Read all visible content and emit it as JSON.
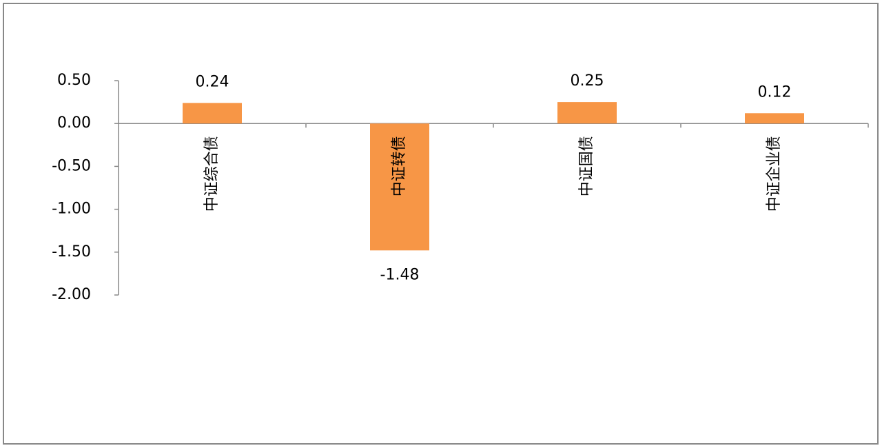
{
  "chart_data": {
    "type": "bar",
    "categories": [
      "中证综合债",
      "中证转债",
      "中证国债",
      "中证企业债"
    ],
    "values": [
      0.24,
      -1.48,
      0.25,
      0.12
    ],
    "color": "#f79646",
    "ylim": [
      -2,
      0.5
    ],
    "yticks": [
      {
        "value": 0.5,
        "label": "0.50"
      },
      {
        "value": 0,
        "label": "0.00"
      },
      {
        "value": -0.5,
        "label": "-0.50"
      },
      {
        "value": -1,
        "label": "-1.00"
      },
      {
        "value": -1.5,
        "label": "-1.50"
      },
      {
        "value": -2,
        "label": "-2.00"
      }
    ]
  }
}
